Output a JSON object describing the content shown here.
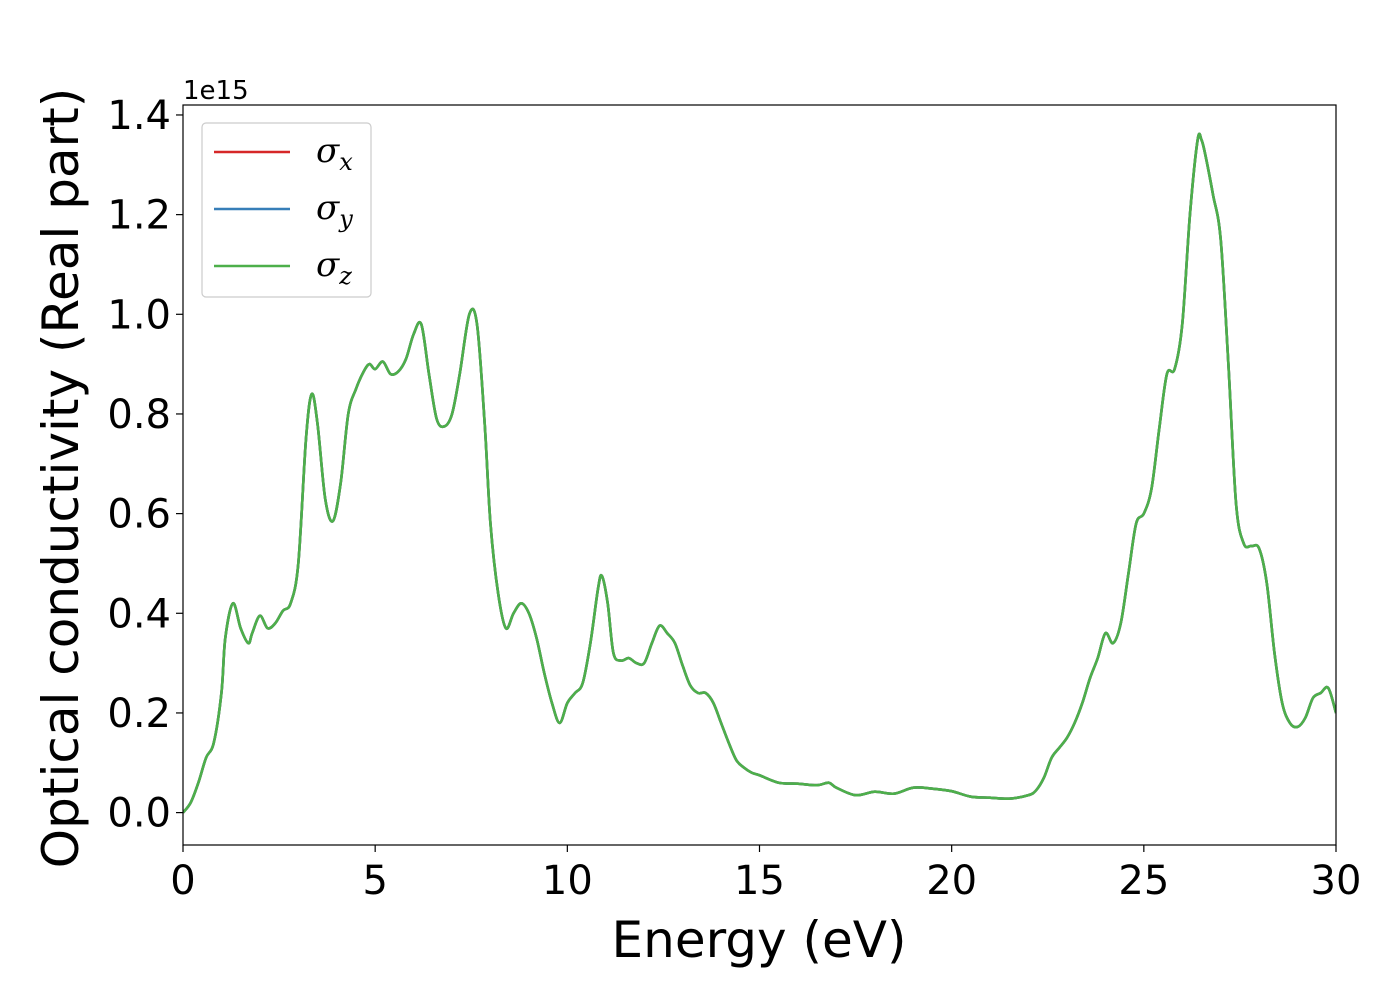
{
  "chart_data": {
    "type": "line",
    "title": "",
    "xlabel": "Energy (eV)",
    "ylabel": "Optical conductivity (Real part)",
    "y_offset_label": "1e15",
    "xlim": [
      0,
      30
    ],
    "ylim": [
      -0.065,
      1.42
    ],
    "x_ticks": [
      0,
      5,
      10,
      15,
      20,
      25,
      30
    ],
    "x_tick_labels": [
      "0",
      "5",
      "10",
      "15",
      "20",
      "25",
      "30"
    ],
    "y_ticks": [
      0.0,
      0.2,
      0.4,
      0.6,
      0.8,
      1.0,
      1.2,
      1.4
    ],
    "y_tick_labels": [
      "0.0",
      "0.2",
      "0.4",
      "0.6",
      "0.8",
      "1.0",
      "1.2",
      "1.4"
    ],
    "grid": false,
    "legend_position": "top-left",
    "x": [
      0,
      0.2,
      0.4,
      0.6,
      0.8,
      1.0,
      1.1,
      1.3,
      1.5,
      1.7,
      1.8,
      2.0,
      2.2,
      2.4,
      2.6,
      2.8,
      3.0,
      3.2,
      3.35,
      3.5,
      3.7,
      3.9,
      4.1,
      4.3,
      4.5,
      4.7,
      4.85,
      5.0,
      5.2,
      5.4,
      5.6,
      5.8,
      6.0,
      6.2,
      6.4,
      6.6,
      6.8,
      7.0,
      7.2,
      7.45,
      7.65,
      7.85,
      8.0,
      8.2,
      8.4,
      8.6,
      8.8,
      9.0,
      9.2,
      9.4,
      9.6,
      9.8,
      10.0,
      10.2,
      10.4,
      10.6,
      10.8,
      10.9,
      11.05,
      11.2,
      11.4,
      11.6,
      11.8,
      12.0,
      12.2,
      12.4,
      12.6,
      12.8,
      13.0,
      13.2,
      13.4,
      13.6,
      13.8,
      14.0,
      14.2,
      14.4,
      14.6,
      14.8,
      15.0,
      15.5,
      16.0,
      16.5,
      16.8,
      17.0,
      17.5,
      18.0,
      18.5,
      19.0,
      19.5,
      20.0,
      20.5,
      21.0,
      21.5,
      22.0,
      22.2,
      22.4,
      22.6,
      22.8,
      23.0,
      23.2,
      23.4,
      23.6,
      23.8,
      24.0,
      24.2,
      24.4,
      24.6,
      24.8,
      25.0,
      25.2,
      25.4,
      25.6,
      25.8,
      26.0,
      26.2,
      26.4,
      26.5,
      26.6,
      26.8,
      27.0,
      27.2,
      27.4,
      27.6,
      27.8,
      28.0,
      28.2,
      28.4,
      28.6,
      28.8,
      29.0,
      29.2,
      29.4,
      29.6,
      29.8,
      30.0
    ],
    "series": [
      {
        "name": "σx",
        "symbol": "σ",
        "subscript": "x",
        "color": "#d62728",
        "values": [
          0.0,
          0.02,
          0.06,
          0.11,
          0.14,
          0.24,
          0.35,
          0.42,
          0.37,
          0.34,
          0.36,
          0.395,
          0.37,
          0.38,
          0.405,
          0.42,
          0.5,
          0.75,
          0.84,
          0.78,
          0.63,
          0.585,
          0.66,
          0.8,
          0.85,
          0.885,
          0.9,
          0.89,
          0.905,
          0.88,
          0.885,
          0.91,
          0.96,
          0.98,
          0.88,
          0.79,
          0.775,
          0.8,
          0.88,
          1.0,
          0.98,
          0.78,
          0.58,
          0.44,
          0.37,
          0.4,
          0.42,
          0.4,
          0.35,
          0.28,
          0.22,
          0.18,
          0.22,
          0.24,
          0.26,
          0.34,
          0.45,
          0.475,
          0.42,
          0.32,
          0.305,
          0.31,
          0.3,
          0.3,
          0.34,
          0.375,
          0.36,
          0.34,
          0.295,
          0.255,
          0.24,
          0.24,
          0.22,
          0.18,
          0.14,
          0.105,
          0.09,
          0.08,
          0.075,
          0.06,
          0.058,
          0.055,
          0.06,
          0.05,
          0.035,
          0.042,
          0.038,
          0.05,
          0.048,
          0.043,
          0.032,
          0.03,
          0.028,
          0.035,
          0.045,
          0.07,
          0.11,
          0.13,
          0.15,
          0.18,
          0.22,
          0.27,
          0.31,
          0.36,
          0.34,
          0.38,
          0.48,
          0.58,
          0.6,
          0.65,
          0.77,
          0.88,
          0.89,
          0.98,
          1.2,
          1.35,
          1.35,
          1.32,
          1.24,
          1.15,
          0.9,
          0.62,
          0.54,
          0.535,
          0.53,
          0.46,
          0.32,
          0.22,
          0.18,
          0.172,
          0.19,
          0.23,
          0.24,
          0.25,
          0.2
        ]
      },
      {
        "name": "σy",
        "symbol": "σ",
        "subscript": "y",
        "color": "#377eb8",
        "values": [
          0.0,
          0.02,
          0.06,
          0.11,
          0.14,
          0.24,
          0.35,
          0.42,
          0.37,
          0.34,
          0.36,
          0.395,
          0.37,
          0.38,
          0.405,
          0.42,
          0.5,
          0.75,
          0.84,
          0.78,
          0.63,
          0.585,
          0.66,
          0.8,
          0.85,
          0.885,
          0.9,
          0.89,
          0.905,
          0.88,
          0.885,
          0.91,
          0.96,
          0.98,
          0.88,
          0.79,
          0.775,
          0.8,
          0.88,
          1.0,
          0.98,
          0.78,
          0.58,
          0.44,
          0.37,
          0.4,
          0.42,
          0.4,
          0.35,
          0.28,
          0.22,
          0.18,
          0.22,
          0.24,
          0.26,
          0.34,
          0.45,
          0.475,
          0.42,
          0.32,
          0.305,
          0.31,
          0.3,
          0.3,
          0.34,
          0.375,
          0.36,
          0.34,
          0.295,
          0.255,
          0.24,
          0.24,
          0.22,
          0.18,
          0.14,
          0.105,
          0.09,
          0.08,
          0.075,
          0.06,
          0.058,
          0.055,
          0.06,
          0.05,
          0.035,
          0.042,
          0.038,
          0.05,
          0.048,
          0.043,
          0.032,
          0.03,
          0.028,
          0.035,
          0.045,
          0.07,
          0.11,
          0.13,
          0.15,
          0.18,
          0.22,
          0.27,
          0.31,
          0.36,
          0.34,
          0.38,
          0.48,
          0.58,
          0.6,
          0.65,
          0.77,
          0.88,
          0.89,
          0.98,
          1.2,
          1.35,
          1.35,
          1.32,
          1.24,
          1.15,
          0.9,
          0.62,
          0.54,
          0.535,
          0.53,
          0.46,
          0.32,
          0.22,
          0.18,
          0.172,
          0.19,
          0.23,
          0.24,
          0.25,
          0.2
        ]
      },
      {
        "name": "σz",
        "symbol": "σ",
        "subscript": "z",
        "color": "#4daf4a",
        "values": [
          0.0,
          0.02,
          0.06,
          0.11,
          0.14,
          0.24,
          0.35,
          0.42,
          0.37,
          0.34,
          0.36,
          0.395,
          0.37,
          0.38,
          0.405,
          0.42,
          0.5,
          0.75,
          0.84,
          0.78,
          0.63,
          0.585,
          0.66,
          0.8,
          0.85,
          0.885,
          0.9,
          0.89,
          0.905,
          0.88,
          0.885,
          0.91,
          0.96,
          0.98,
          0.88,
          0.79,
          0.775,
          0.8,
          0.88,
          1.0,
          0.98,
          0.78,
          0.58,
          0.44,
          0.37,
          0.4,
          0.42,
          0.4,
          0.35,
          0.28,
          0.22,
          0.18,
          0.22,
          0.24,
          0.26,
          0.34,
          0.45,
          0.475,
          0.42,
          0.32,
          0.305,
          0.31,
          0.3,
          0.3,
          0.34,
          0.375,
          0.36,
          0.34,
          0.295,
          0.255,
          0.24,
          0.24,
          0.22,
          0.18,
          0.14,
          0.105,
          0.09,
          0.08,
          0.075,
          0.06,
          0.058,
          0.055,
          0.06,
          0.05,
          0.035,
          0.042,
          0.038,
          0.05,
          0.048,
          0.043,
          0.032,
          0.03,
          0.028,
          0.035,
          0.045,
          0.07,
          0.11,
          0.13,
          0.15,
          0.18,
          0.22,
          0.27,
          0.31,
          0.36,
          0.34,
          0.38,
          0.48,
          0.58,
          0.6,
          0.65,
          0.77,
          0.88,
          0.89,
          0.98,
          1.2,
          1.35,
          1.35,
          1.32,
          1.24,
          1.15,
          0.9,
          0.62,
          0.54,
          0.535,
          0.53,
          0.46,
          0.32,
          0.22,
          0.18,
          0.172,
          0.19,
          0.23,
          0.24,
          0.25,
          0.2
        ]
      }
    ]
  }
}
